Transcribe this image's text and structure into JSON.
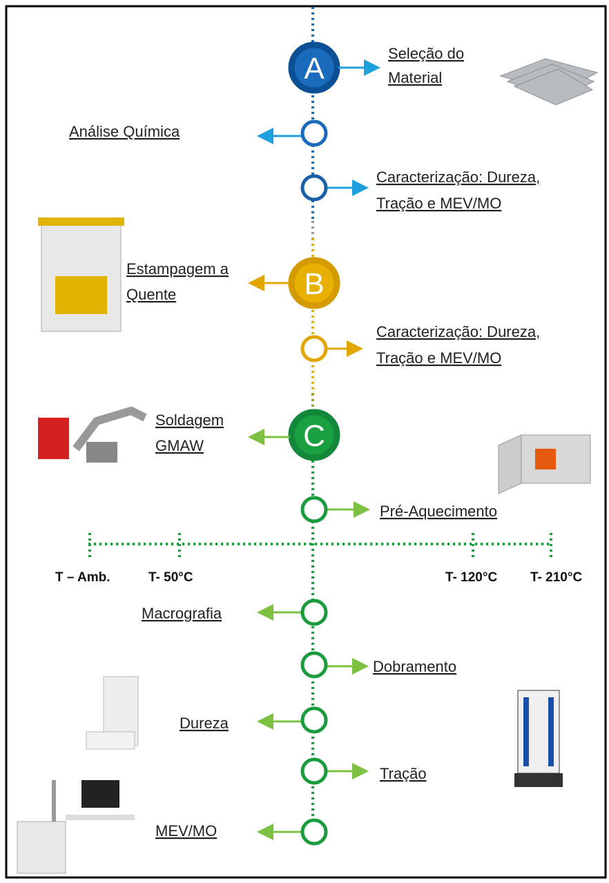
{
  "stages": [
    {
      "letter": "A"
    },
    {
      "letter": "B"
    },
    {
      "letter": "C"
    }
  ],
  "steps": [
    {
      "lines": [
        "Seleção do",
        "Material"
      ]
    },
    {
      "lines": [
        "Análise Química"
      ]
    },
    {
      "lines": [
        "Caracterização: Dureza,",
        "Tração e MEV/MO"
      ]
    },
    {
      "lines": [
        "Estampagem a",
        "Quente"
      ]
    },
    {
      "lines": [
        "Caracterização: Dureza,",
        "Tração e MEV/MO"
      ]
    },
    {
      "lines": [
        "Soldagem",
        "GMAW"
      ]
    },
    {
      "lines": [
        "Pré-Aquecimento"
      ]
    },
    {
      "lines": [
        "Macrografia"
      ]
    },
    {
      "lines": [
        "Dobramento"
      ]
    },
    {
      "lines": [
        "Dureza"
      ]
    },
    {
      "lines": [
        "Tração"
      ]
    },
    {
      "lines": [
        "MEV/MO"
      ]
    }
  ],
  "temperatures": [
    "T – Amb.",
    "T- 50°C",
    "T- 120°C",
    "T- 210°C"
  ]
}
